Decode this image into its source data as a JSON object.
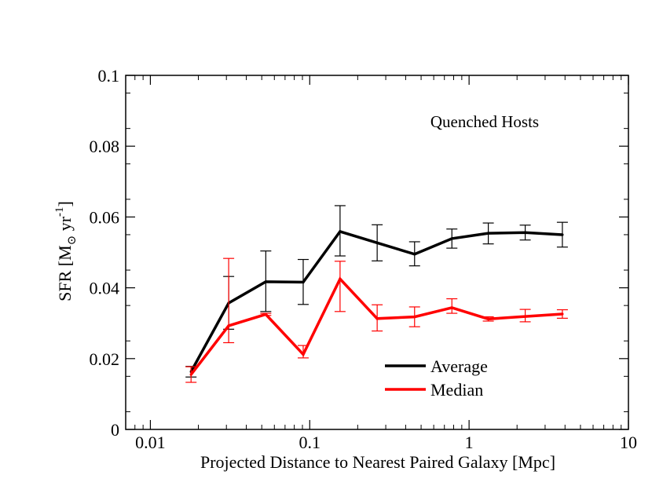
{
  "chart_data": {
    "type": "line",
    "title": "",
    "annotation": "Quenched Hosts",
    "xlabel": "Projected Distance to Nearest Paired Galaxy [Mpc]",
    "ylabel_main": "SFR [M",
    "ylabel_sub": "⊙",
    "ylabel_mid": " yr",
    "ylabel_sup": "-1",
    "ylabel_end": "]",
    "xscale": "log",
    "xlim": [
      0.007,
      10
    ],
    "ylim": [
      0,
      0.1
    ],
    "x_ticks": [
      0.01,
      0.1,
      1,
      10
    ],
    "x_tick_labels": [
      "0.01",
      "0.1",
      "1",
      "10"
    ],
    "y_ticks": [
      0,
      0.02,
      0.04,
      0.06,
      0.08,
      0.1
    ],
    "y_tick_labels": [
      "0",
      "0.02",
      "0.04",
      "0.06",
      "0.08",
      "0.1"
    ],
    "grid": false,
    "legend_position": "lower-right",
    "x": [
      0.018,
      0.031,
      0.053,
      0.091,
      0.155,
      0.265,
      0.455,
      0.78,
      1.32,
      2.25,
      3.85
    ],
    "series": [
      {
        "name": "Average",
        "color": "#000000",
        "values": [
          0.0163,
          0.0357,
          0.0417,
          0.0416,
          0.0559,
          0.0527,
          0.0495,
          0.0539,
          0.0554,
          0.0556,
          0.055
        ],
        "err_low": [
          0.0148,
          0.0283,
          0.0333,
          0.0353,
          0.049,
          0.0476,
          0.0462,
          0.0512,
          0.0524,
          0.0535,
          0.0515
        ],
        "err_high": [
          0.0178,
          0.0432,
          0.0504,
          0.048,
          0.0632,
          0.0578,
          0.053,
          0.0566,
          0.0583,
          0.0577,
          0.0585
        ]
      },
      {
        "name": "Median",
        "color": "#ff0000",
        "values": [
          0.0155,
          0.0293,
          0.0325,
          0.0212,
          0.0425,
          0.0313,
          0.0318,
          0.0344,
          0.0312,
          0.0319,
          0.0326
        ],
        "err_low": [
          0.0133,
          0.0245,
          0.0322,
          0.0202,
          0.0333,
          0.0278,
          0.029,
          0.0328,
          0.0306,
          0.0304,
          0.0314
        ],
        "err_high": [
          0.0177,
          0.0483,
          0.0328,
          0.0237,
          0.0475,
          0.0352,
          0.0346,
          0.0369,
          0.0318,
          0.0339,
          0.0338
        ]
      }
    ]
  }
}
